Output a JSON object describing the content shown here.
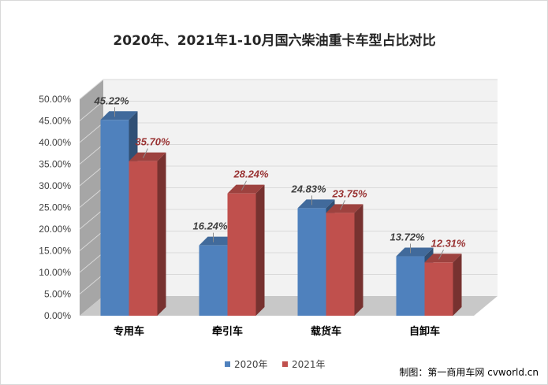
{
  "colors": {
    "series_2020": "#4f81bd",
    "series_2021": "#c0504d",
    "wall": "#f2f2f2",
    "side_wall": "#a6a6a6",
    "floor": "#c8c8c8",
    "grid": "#d9d9d9"
  },
  "chart_data": {
    "type": "bar",
    "title": "2020年、2021年1-10月国六柴油重卡车型占比对比",
    "categories": [
      "专用车",
      "牵引车",
      "载货车",
      "自卸车"
    ],
    "series": [
      {
        "name": "2020年",
        "values": [
          45.22,
          16.24,
          24.83,
          13.72
        ],
        "labels": [
          "45.22%",
          "16.24%",
          "24.83%",
          "13.72%"
        ],
        "color": "#4f81bd"
      },
      {
        "name": "2021年",
        "values": [
          35.7,
          28.24,
          23.75,
          12.31
        ],
        "labels": [
          "35.70%",
          "28.24%",
          "23.75%",
          "12.31%"
        ],
        "color": "#c0504d"
      }
    ],
    "ylim": [
      0,
      50
    ],
    "ytick_labels": [
      "0.00%",
      "5.00%",
      "10.00%",
      "15.00%",
      "20.00%",
      "25.00%",
      "30.00%",
      "35.00%",
      "40.00%",
      "45.00%",
      "50.00%"
    ],
    "grid": true,
    "legend_position": "bottom",
    "style": "3d-clustered-column"
  },
  "credit": "制图：第一商用车网 cvworld.cn"
}
